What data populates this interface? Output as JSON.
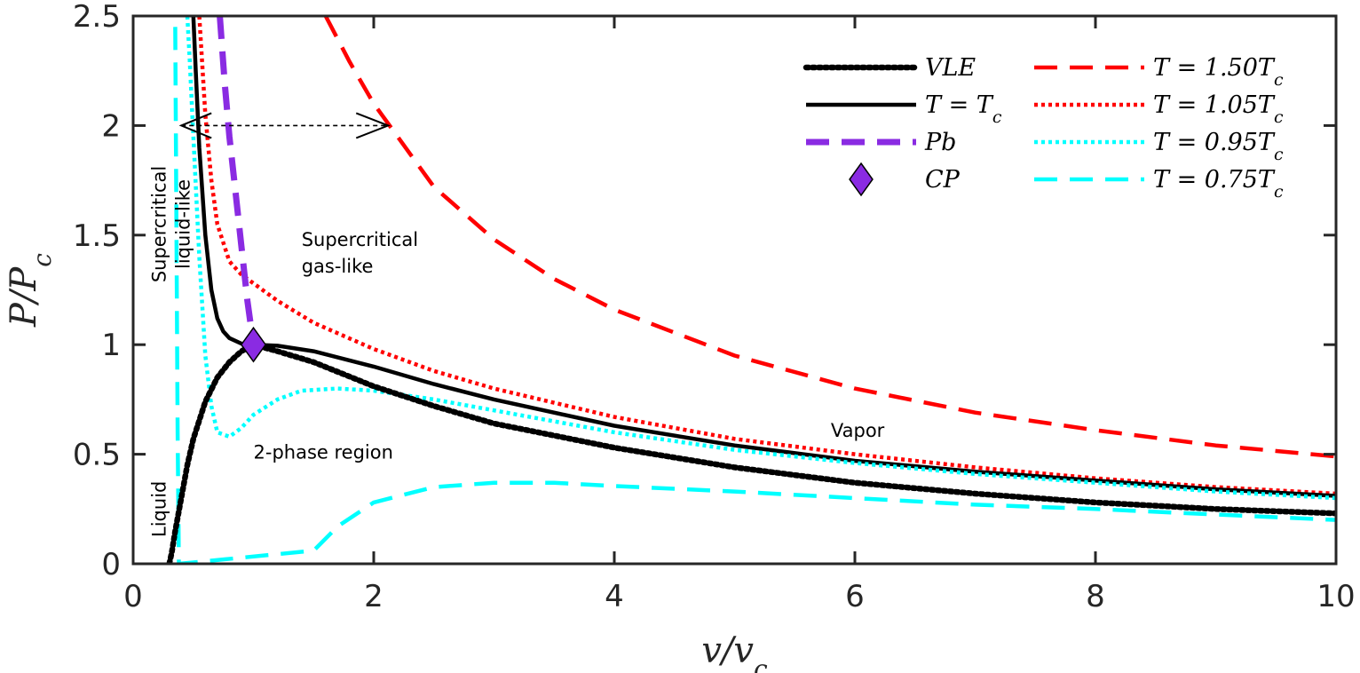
{
  "chart_data": {
    "type": "line",
    "title": "",
    "xlabel": "v/v_c",
    "ylabel": "P/P_c",
    "xlim": [
      0,
      10
    ],
    "ylim": [
      0,
      2.5
    ],
    "xticks": [
      "0",
      "2",
      "4",
      "6",
      "8",
      "10"
    ],
    "yticks": [
      "0",
      "0.5",
      "1",
      "1.5",
      "2",
      "2.5"
    ],
    "grid": false,
    "legend_position": "top-right",
    "legend": [
      {
        "id": "vle",
        "label": "VLE",
        "color": "#000000",
        "style": "dotted-heavy"
      },
      {
        "id": "tc",
        "label": "T = T_c",
        "color": "#000000",
        "style": "solid"
      },
      {
        "id": "pb",
        "label": "Pb",
        "color": "#8A2BE2",
        "style": "dashed"
      },
      {
        "id": "cp",
        "label": "CP",
        "color": "#8A2BE2",
        "style": "diamond"
      },
      {
        "id": "t150",
        "label": "T = 1.50T_c",
        "color": "#FF0000",
        "style": "dashed"
      },
      {
        "id": "t105",
        "label": "T = 1.05T_c",
        "color": "#FF0000",
        "style": "dotted"
      },
      {
        "id": "t095",
        "label": "T = 0.95T_c",
        "color": "#00FFFF",
        "style": "dotted"
      },
      {
        "id": "t075",
        "label": "T = 0.75T_c",
        "color": "#00FFFF",
        "style": "dashed"
      }
    ],
    "series": [
      {
        "name": "T = 1.50T_c",
        "color": "#FF0000",
        "x": [
          1.6,
          1.8,
          2.0,
          2.5,
          3.0,
          3.5,
          4.0,
          5.0,
          6.0,
          7.0,
          8.0,
          9.0,
          10.0
        ],
        "y": [
          2.5,
          2.29,
          2.1,
          1.72,
          1.48,
          1.3,
          1.16,
          0.95,
          0.8,
          0.69,
          0.61,
          0.54,
          0.49
        ]
      },
      {
        "name": "T = 1.05T_c",
        "color": "#FF0000",
        "x": [
          0.55,
          0.6,
          0.65,
          0.7,
          0.8,
          0.9,
          1.0,
          1.2,
          1.5,
          2.0,
          2.5,
          3.0,
          4.0,
          5.0,
          6.0,
          7.0,
          8.0,
          9.0,
          10.0
        ],
        "y": [
          2.5,
          2.05,
          1.75,
          1.55,
          1.38,
          1.32,
          1.28,
          1.2,
          1.1,
          0.98,
          0.88,
          0.8,
          0.67,
          0.57,
          0.5,
          0.44,
          0.39,
          0.35,
          0.32
        ]
      },
      {
        "name": "T = T_c",
        "color": "#000000",
        "x": [
          0.5,
          0.52,
          0.55,
          0.6,
          0.65,
          0.7,
          0.75,
          0.8,
          0.9,
          1.0,
          1.2,
          1.5,
          2.0,
          2.5,
          3.0,
          4.0,
          5.0,
          6.0,
          7.0,
          8.0,
          9.0,
          10.0
        ],
        "y": [
          2.5,
          2.25,
          1.9,
          1.5,
          1.25,
          1.12,
          1.06,
          1.03,
          1.005,
          1.0,
          0.995,
          0.97,
          0.9,
          0.82,
          0.75,
          0.63,
          0.54,
          0.47,
          0.42,
          0.38,
          0.34,
          0.31
        ]
      },
      {
        "name": "T = 0.95T_c",
        "color": "#00FFFF",
        "x": [
          0.45,
          0.47,
          0.5,
          0.55,
          0.6,
          0.65,
          0.7,
          0.8,
          0.9,
          1.0,
          1.2,
          1.4,
          1.7,
          2.0,
          2.5,
          3.0,
          4.0,
          5.0,
          6.0,
          7.0,
          8.0,
          9.0,
          10.0
        ],
        "y": [
          2.5,
          2.3,
          1.95,
          1.4,
          0.95,
          0.72,
          0.6,
          0.58,
          0.62,
          0.68,
          0.75,
          0.79,
          0.8,
          0.79,
          0.75,
          0.7,
          0.6,
          0.52,
          0.46,
          0.41,
          0.37,
          0.33,
          0.3
        ]
      },
      {
        "name": "T = 0.75T_c",
        "color": "#00FFFF",
        "x": [
          0.35,
          0.36,
          0.37,
          0.38,
          1.5,
          1.7,
          2.0,
          2.5,
          3.0,
          3.5,
          4.0,
          5.0,
          6.0,
          7.0,
          8.0,
          9.0,
          10.0
        ],
        "y": [
          2.45,
          1.5,
          0.6,
          0.0,
          0.06,
          0.17,
          0.28,
          0.35,
          0.37,
          0.37,
          0.355,
          0.33,
          0.3,
          0.27,
          0.25,
          0.225,
          0.2
        ]
      },
      {
        "name": "VLE",
        "color": "#000000",
        "x": [
          0.3,
          0.32,
          0.35,
          0.4,
          0.45,
          0.5,
          0.6,
          0.7,
          0.8,
          0.9,
          1.0,
          1.2,
          1.5,
          2.0,
          2.5,
          3.0,
          4.0,
          5.0,
          6.0,
          7.0,
          8.0,
          9.0,
          10.0
        ],
        "y": [
          0.0,
          0.05,
          0.15,
          0.3,
          0.45,
          0.57,
          0.74,
          0.85,
          0.92,
          0.97,
          1.0,
          0.97,
          0.92,
          0.81,
          0.72,
          0.64,
          0.53,
          0.44,
          0.37,
          0.32,
          0.28,
          0.25,
          0.23
        ]
      },
      {
        "name": "Pb",
        "color": "#8A2BE2",
        "x": [
          0.72,
          0.74,
          0.76,
          0.8,
          0.85,
          0.9,
          0.95,
          1.0
        ],
        "y": [
          2.5,
          2.35,
          2.2,
          1.95,
          1.7,
          1.45,
          1.2,
          1.0
        ]
      }
    ],
    "critical_point": {
      "x": 1.0,
      "y": 1.0,
      "color": "#8A2BE2"
    },
    "arrow": {
      "x_start": 0.4,
      "x_end": 2.12,
      "y": 2.0
    },
    "annotations": [
      {
        "text": "Supercritical",
        "x": 1.4,
        "y": 1.45
      },
      {
        "text": "gas-like",
        "x": 1.4,
        "y": 1.33
      },
      {
        "text": "Supercritical",
        "x": 0.27,
        "y": 1.55,
        "rotate": -90
      },
      {
        "text": "liquid-like",
        "x": 0.47,
        "y": 1.55,
        "rotate": -90
      },
      {
        "text": "2-phase region",
        "x": 1.0,
        "y": 0.48
      },
      {
        "text": "Vapor",
        "x": 5.8,
        "y": 0.58
      },
      {
        "text": "Liquid",
        "x": 0.27,
        "y": 0.25,
        "rotate": -90
      }
    ]
  }
}
